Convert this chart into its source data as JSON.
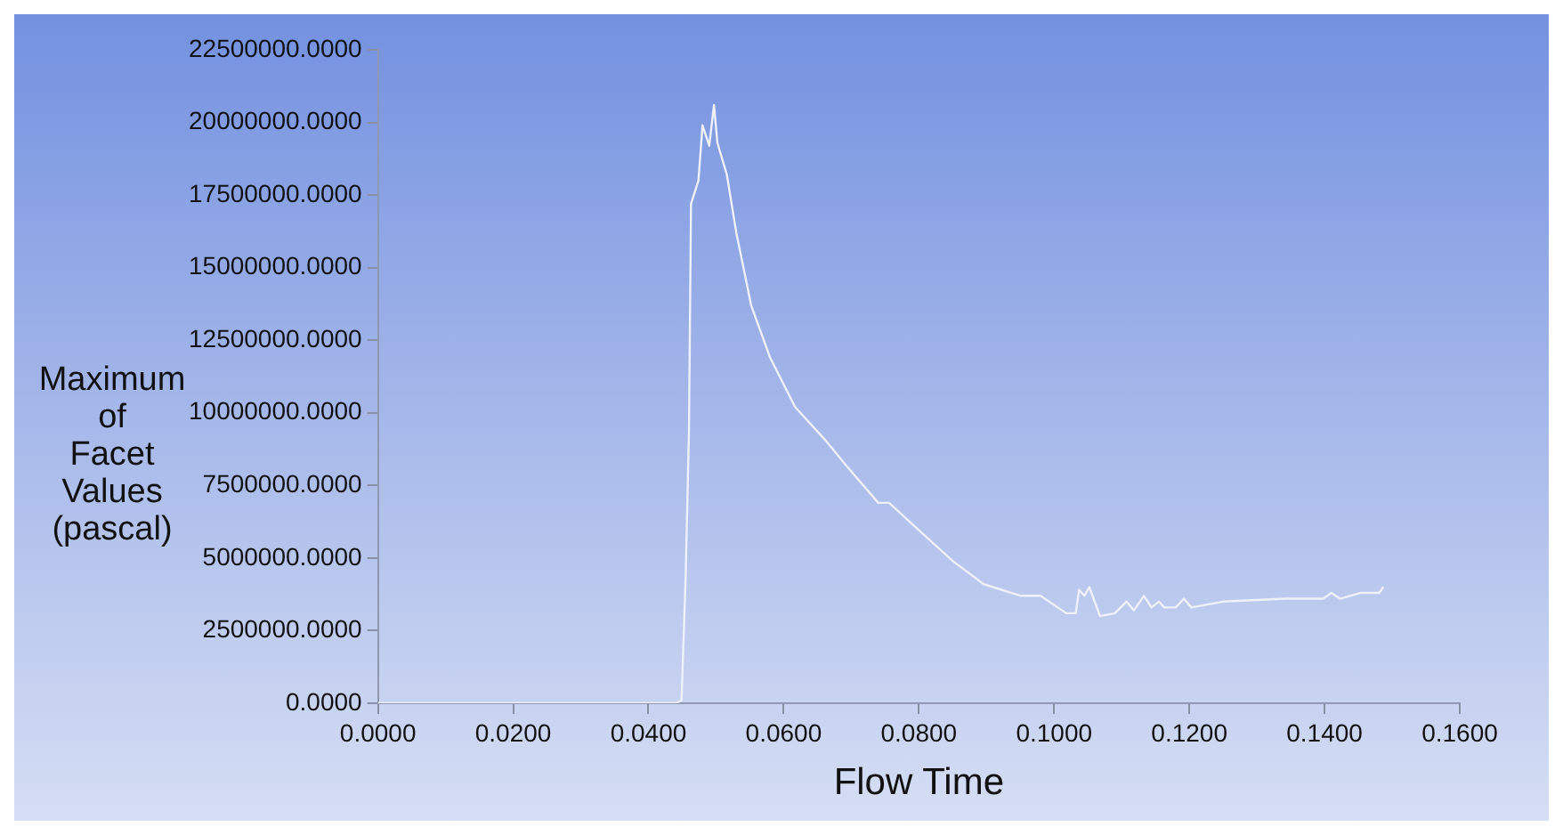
{
  "chart_data": {
    "type": "line",
    "xlabel": "Flow Time",
    "ylabel": "Maximum of Facet Values (pascal)",
    "xlim": [
      0,
      0.16
    ],
    "xticks": [
      {
        "value": 0,
        "label": "0.0000"
      },
      {
        "value": 0.02,
        "label": "0.0200"
      },
      {
        "value": 0.04,
        "label": "0.0400"
      },
      {
        "value": 0.06,
        "label": "0.0600"
      },
      {
        "value": 0.08,
        "label": "0.0800"
      },
      {
        "value": 0.1,
        "label": "0.1000"
      },
      {
        "value": 0.12,
        "label": "0.1200"
      },
      {
        "value": 0.14,
        "label": "0.1400"
      },
      {
        "value": 0.16,
        "label": "0.1600"
      }
    ],
    "ylim": [
      0,
      22500000
    ],
    "yticks": [
      {
        "value": 0,
        "label": "0.0000"
      },
      {
        "value": 2500000,
        "label": "2500000.0000"
      },
      {
        "value": 5000000,
        "label": "5000000.0000"
      },
      {
        "value": 7500000,
        "label": "7500000.0000"
      },
      {
        "value": 10000000,
        "label": "10000000.0000"
      },
      {
        "value": 12500000,
        "label": "12500000.0000"
      },
      {
        "value": 15000000,
        "label": "15000000.0000"
      },
      {
        "value": 17500000,
        "label": "17500000.0000"
      },
      {
        "value": 20000000,
        "label": "20000000.0000"
      },
      {
        "value": 22500000,
        "label": "22500000.0000"
      }
    ],
    "grid": false,
    "legend": false,
    "marker": "none",
    "line_style": "solid",
    "series": [
      {
        "color": "#eef1fa",
        "x": [
          0,
          0.044,
          0.0449,
          0.0455,
          0.046,
          0.0463,
          0.0474,
          0.048,
          0.049,
          0.0497,
          0.0502,
          0.0516,
          0.053,
          0.0552,
          0.058,
          0.0617,
          0.0664,
          0.0692,
          0.074,
          0.0756,
          0.0803,
          0.085,
          0.0896,
          0.0951,
          0.098,
          0.1018,
          0.1032,
          0.1037,
          0.1045,
          0.1052,
          0.1068,
          0.109,
          0.1107,
          0.1118,
          0.1133,
          0.1144,
          0.1155,
          0.1163,
          0.118,
          0.1192,
          0.1203,
          0.125,
          0.1342,
          0.1398,
          0.141,
          0.1423,
          0.1453,
          0.1481,
          0.1487
        ],
        "values": [
          0,
          0,
          100000,
          4300000,
          9400000,
          17200000,
          18000000,
          19900000,
          19200000,
          20600000,
          19300000,
          18200000,
          16200000,
          13700000,
          11900000,
          10200000,
          9000000,
          8200000,
          6900000,
          6900000,
          5900000,
          4900000,
          4100000,
          3700000,
          3700000,
          3100000,
          3100000,
          3900000,
          3700000,
          4000000,
          3000000,
          3100000,
          3500000,
          3200000,
          3700000,
          3300000,
          3500000,
          3300000,
          3300000,
          3600000,
          3300000,
          3500000,
          3600000,
          3600000,
          3800000,
          3600000,
          3800000,
          3800000,
          4000000
        ]
      }
    ]
  }
}
